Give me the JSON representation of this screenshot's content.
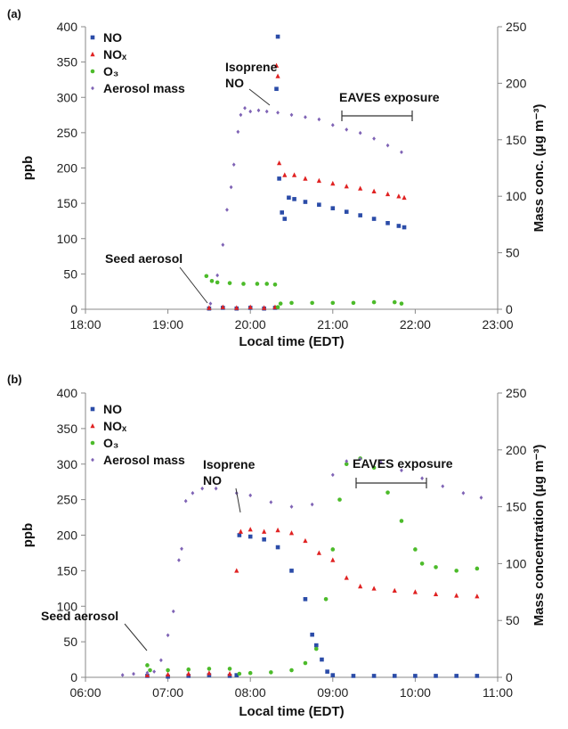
{
  "colors": {
    "NO": "#2b4ca8",
    "NOx": "#e02222",
    "O3": "#4cbb2a",
    "Aerosol": "#7f63b5",
    "axis": "#888888"
  },
  "chart_data": [
    {
      "panel_label": "(a)",
      "type": "scatter",
      "xlabel": "Local time (EDT)",
      "ylabel": "ppb",
      "y2label": "Mass conc. (μg m⁻³)",
      "xlim": [
        "18:00",
        "23:00"
      ],
      "ylim": [
        0,
        400
      ],
      "y2lim": [
        0,
        250
      ],
      "x_ticks": [
        "18:00",
        "19:00",
        "20:00",
        "21:00",
        "22:00",
        "23:00"
      ],
      "y_ticks": [
        "0",
        "50",
        "100",
        "150",
        "200",
        "250",
        "300",
        "350",
        "400"
      ],
      "y2_ticks": [
        "0",
        "50",
        "100",
        "150",
        "200",
        "250"
      ],
      "legend": [
        "NO",
        "NOₓ",
        "O₃",
        "Aerosol mass"
      ],
      "annotations": {
        "seed": "Seed aerosol",
        "iso1": "Isoprene",
        "iso2": "NO",
        "eaves": "EAVES exposure"
      },
      "series": [
        {
          "name": "NO",
          "key": "NO",
          "marker": "square",
          "axis": "left",
          "points": [
            [
              "19:30",
              1
            ],
            [
              "19:40",
              2
            ],
            [
              "19:50",
              1
            ],
            [
              "20:00",
              2
            ],
            [
              "20:10",
              1
            ],
            [
              "20:18",
              2
            ],
            [
              "20:19",
              312
            ],
            [
              "20:20",
              386
            ],
            [
              "20:21",
              185
            ],
            [
              "20:23",
              137
            ],
            [
              "20:25",
              128
            ],
            [
              "20:28",
              158
            ],
            [
              "20:32",
              156
            ],
            [
              "20:40",
              152
            ],
            [
              "20:50",
              148
            ],
            [
              "21:00",
              143
            ],
            [
              "21:10",
              138
            ],
            [
              "21:20",
              133
            ],
            [
              "21:30",
              128
            ],
            [
              "21:40",
              122
            ],
            [
              "21:48",
              118
            ],
            [
              "21:52",
              116
            ]
          ]
        },
        {
          "name": "NOₓ",
          "key": "NOx",
          "marker": "triangle",
          "axis": "left",
          "points": [
            [
              "19:30",
              2
            ],
            [
              "19:40",
              3
            ],
            [
              "19:50",
              2
            ],
            [
              "20:00",
              3
            ],
            [
              "20:10",
              2
            ],
            [
              "20:18",
              3
            ],
            [
              "20:19",
              345
            ],
            [
              "20:20",
              330
            ],
            [
              "20:21",
              207
            ],
            [
              "20:25",
              190
            ],
            [
              "20:32",
              190
            ],
            [
              "20:40",
              185
            ],
            [
              "20:50",
              182
            ],
            [
              "21:00",
              178
            ],
            [
              "21:10",
              174
            ],
            [
              "21:20",
              171
            ],
            [
              "21:30",
              167
            ],
            [
              "21:40",
              163
            ],
            [
              "21:48",
              160
            ],
            [
              "21:52",
              158
            ]
          ]
        },
        {
          "name": "O₃",
          "key": "O3",
          "marker": "circle",
          "axis": "left",
          "points": [
            [
              "19:28",
              47
            ],
            [
              "19:32",
              40
            ],
            [
              "19:36",
              38
            ],
            [
              "19:45",
              37
            ],
            [
              "19:55",
              36
            ],
            [
              "20:05",
              36
            ],
            [
              "20:12",
              36
            ],
            [
              "20:18",
              35
            ],
            [
              "20:20",
              3
            ],
            [
              "20:22",
              8
            ],
            [
              "20:30",
              9
            ],
            [
              "20:45",
              9
            ],
            [
              "21:00",
              9
            ],
            [
              "21:15",
              9
            ],
            [
              "21:30",
              10
            ],
            [
              "21:45",
              10
            ],
            [
              "21:50",
              8
            ]
          ]
        },
        {
          "name": "Aerosol mass",
          "key": "Aerosol",
          "marker": "diamond",
          "axis": "right",
          "points": [
            [
              "19:31",
              5
            ],
            [
              "19:36",
              30
            ],
            [
              "19:40",
              57
            ],
            [
              "19:43",
              88
            ],
            [
              "19:46",
              108
            ],
            [
              "19:48",
              128
            ],
            [
              "19:51",
              157
            ],
            [
              "19:53",
              172
            ],
            [
              "19:56",
              178
            ],
            [
              "20:00",
              175
            ],
            [
              "20:06",
              176
            ],
            [
              "20:12",
              175
            ],
            [
              "20:20",
              174
            ],
            [
              "20:30",
              172
            ],
            [
              "20:40",
              170
            ],
            [
              "20:50",
              168
            ],
            [
              "21:00",
              163
            ],
            [
              "21:10",
              159
            ],
            [
              "21:20",
              156
            ],
            [
              "21:30",
              151
            ],
            [
              "21:40",
              145
            ],
            [
              "21:50",
              139
            ]
          ]
        }
      ]
    },
    {
      "panel_label": "(b)",
      "type": "scatter",
      "xlabel": "Local time (EDT)",
      "ylabel": "ppb",
      "y2label": "Mass concentration (μg m⁻³)",
      "xlim": [
        "06:00",
        "11:00"
      ],
      "ylim": [
        0,
        400
      ],
      "y2lim": [
        0,
        250
      ],
      "x_ticks": [
        "06:00",
        "07:00",
        "08:00",
        "09:00",
        "10:00",
        "11:00"
      ],
      "y_ticks": [
        "0",
        "50",
        "100",
        "150",
        "200",
        "250",
        "300",
        "350",
        "400"
      ],
      "y2_ticks": [
        "0",
        "50",
        "100",
        "150",
        "200",
        "250"
      ],
      "legend": [
        "NO",
        "NOₓ",
        "O₃",
        "Aerosol mass"
      ],
      "annotations": {
        "seed": "Seed aerosol",
        "iso1": "Isoprene",
        "iso2": "NO",
        "eaves": "EAVES exposure"
      },
      "series": [
        {
          "name": "NO",
          "key": "NO",
          "marker": "square",
          "axis": "left",
          "points": [
            [
              "06:45",
              2
            ],
            [
              "07:00",
              1
            ],
            [
              "07:15",
              2
            ],
            [
              "07:30",
              3
            ],
            [
              "07:45",
              2
            ],
            [
              "07:50",
              3
            ],
            [
              "07:52",
              200
            ],
            [
              "08:00",
              198
            ],
            [
              "08:10",
              194
            ],
            [
              "08:20",
              183
            ],
            [
              "08:30",
              150
            ],
            [
              "08:40",
              110
            ],
            [
              "08:45",
              60
            ],
            [
              "08:48",
              45
            ],
            [
              "08:52",
              25
            ],
            [
              "08:56",
              8
            ],
            [
              "09:00",
              3
            ],
            [
              "09:15",
              2
            ],
            [
              "09:30",
              2
            ],
            [
              "09:45",
              2
            ],
            [
              "10:00",
              2
            ],
            [
              "10:15",
              2
            ],
            [
              "10:30",
              2
            ],
            [
              "10:45",
              2
            ]
          ]
        },
        {
          "name": "NOₓ",
          "key": "NOx",
          "marker": "triangle",
          "axis": "left",
          "points": [
            [
              "06:45",
              3
            ],
            [
              "07:00",
              4
            ],
            [
              "07:15",
              5
            ],
            [
              "07:30",
              6
            ],
            [
              "07:45",
              5
            ],
            [
              "07:50",
              150
            ],
            [
              "07:53",
              205
            ],
            [
              "08:00",
              208
            ],
            [
              "08:10",
              205
            ],
            [
              "08:20",
              207
            ],
            [
              "08:30",
              203
            ],
            [
              "08:40",
              192
            ],
            [
              "08:50",
              175
            ],
            [
              "09:00",
              165
            ],
            [
              "09:10",
              140
            ],
            [
              "09:20",
              128
            ],
            [
              "09:30",
              125
            ],
            [
              "09:45",
              122
            ],
            [
              "10:00",
              120
            ],
            [
              "10:15",
              117
            ],
            [
              "10:30",
              115
            ],
            [
              "10:45",
              114
            ]
          ]
        },
        {
          "name": "O₃",
          "key": "O3",
          "marker": "circle",
          "axis": "left",
          "points": [
            [
              "06:45",
              17
            ],
            [
              "06:47",
              10
            ],
            [
              "07:00",
              10
            ],
            [
              "07:15",
              11
            ],
            [
              "07:30",
              12
            ],
            [
              "07:45",
              12
            ],
            [
              "07:52",
              5
            ],
            [
              "08:00",
              6
            ],
            [
              "08:15",
              7
            ],
            [
              "08:30",
              10
            ],
            [
              "08:40",
              20
            ],
            [
              "08:48",
              40
            ],
            [
              "08:55",
              110
            ],
            [
              "09:00",
              180
            ],
            [
              "09:05",
              250
            ],
            [
              "09:10",
              300
            ],
            [
              "09:20",
              308
            ],
            [
              "09:30",
              295
            ],
            [
              "09:40",
              260
            ],
            [
              "09:50",
              220
            ],
            [
              "10:00",
              180
            ],
            [
              "10:05",
              160
            ],
            [
              "10:15",
              155
            ],
            [
              "10:30",
              150
            ],
            [
              "10:45",
              153
            ]
          ]
        },
        {
          "name": "Aerosol mass",
          "key": "Aerosol",
          "marker": "diamond",
          "axis": "right",
          "points": [
            [
              "06:27",
              2
            ],
            [
              "06:35",
              3
            ],
            [
              "06:45",
              4
            ],
            [
              "06:50",
              5
            ],
            [
              "06:55",
              15
            ],
            [
              "07:00",
              37
            ],
            [
              "07:04",
              58
            ],
            [
              "07:08",
              103
            ],
            [
              "07:10",
              113
            ],
            [
              "07:13",
              155
            ],
            [
              "07:18",
              162
            ],
            [
              "07:25",
              166
            ],
            [
              "07:35",
              166
            ],
            [
              "07:50",
              162
            ],
            [
              "08:00",
              160
            ],
            [
              "08:15",
              154
            ],
            [
              "08:30",
              150
            ],
            [
              "08:45",
              152
            ],
            [
              "09:00",
              178
            ],
            [
              "09:10",
              190
            ],
            [
              "09:20",
              192
            ],
            [
              "09:35",
              189
            ],
            [
              "09:50",
              182
            ],
            [
              "10:05",
              175
            ],
            [
              "10:20",
              168
            ],
            [
              "10:35",
              162
            ],
            [
              "10:48",
              158
            ]
          ]
        }
      ]
    }
  ]
}
